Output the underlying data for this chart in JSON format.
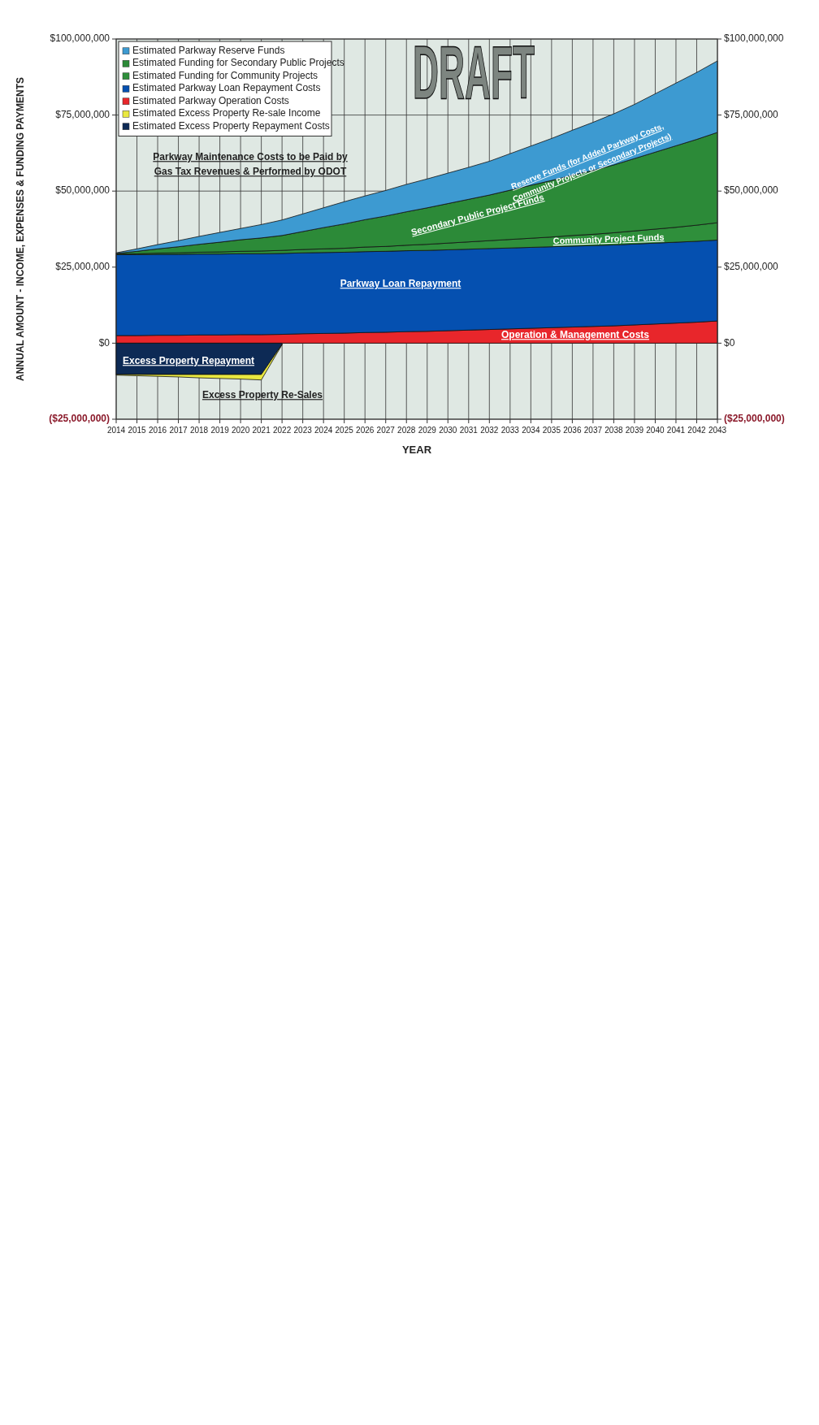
{
  "chart_data": [
    {
      "type": "area",
      "stacked": true,
      "xlabel": "YEAR",
      "ylabel": "ANNUAL AMOUNT - INCOME, EXPENSES & FUNDING PAYMENTS",
      "x": [
        2014,
        2015,
        2016,
        2017,
        2018,
        2019,
        2020,
        2021,
        2022,
        2023,
        2024,
        2025,
        2026,
        2027,
        2028,
        2029,
        2030,
        2031,
        2032,
        2033,
        2034,
        2035,
        2036,
        2037,
        2038,
        2039,
        2040,
        2041,
        2042,
        2043
      ],
      "series": [
        {
          "name": "Estimated Parkway Operation Costs",
          "color": "#e8262b",
          "values": [
            2500000,
            2500000,
            2600000,
            2600000,
            2700000,
            2700000,
            2800000,
            2800000,
            2900000,
            3100000,
            3200000,
            3300000,
            3500000,
            3600000,
            3800000,
            3900000,
            4100000,
            4300000,
            4500000,
            4700000,
            4900000,
            5100000,
            5300000,
            5500000,
            5700000,
            6000000,
            6300000,
            6600000,
            6900000,
            7300000
          ]
        },
        {
          "name": "Estimated Parkway Loan Repayment Costs",
          "color": "#0550b0",
          "values": [
            26600000,
            26600000,
            26600000,
            26600000,
            26600000,
            26600000,
            26600000,
            26600000,
            26600000,
            26600000,
            26600000,
            26600000,
            26600000,
            26600000,
            26600000,
            26600000,
            26600000,
            26600000,
            26600000,
            26600000,
            26600000,
            26600000,
            26600000,
            26600000,
            26600000,
            26600000,
            26600000,
            26600000,
            26600000,
            26600000
          ]
        },
        {
          "name": "Estimated Funding for Community Projects",
          "color": "#2f8f3b",
          "values": [
            200000,
            300000,
            400000,
            500000,
            600000,
            700000,
            800000,
            900000,
            1000000,
            1100000,
            1200000,
            1300000,
            1500000,
            1600000,
            1800000,
            2000000,
            2200000,
            2400000,
            2600000,
            2800000,
            3000000,
            3200000,
            3500000,
            3700000,
            4000000,
            4300000,
            4600000,
            4900000,
            5300000,
            5700000
          ]
        },
        {
          "name": "Estimated Funding for Secondary Public Projects",
          "color": "#2c8a38",
          "values": [
            200000,
            800000,
            1400000,
            2000000,
            2600000,
            3200000,
            3800000,
            4300000,
            4900000,
            5900000,
            7000000,
            8000000,
            9000000,
            10000000,
            11000000,
            12000000,
            13000000,
            14000000,
            15000000,
            16200000,
            17400000,
            18600000,
            19800000,
            21000000,
            22300000,
            23800000,
            25300000,
            26800000,
            28200000,
            29700000
          ]
        },
        {
          "name": "Estimated Parkway Reserve Funds",
          "color": "#3d9ad1",
          "values": [
            200000,
            800000,
            1400000,
            2000000,
            2600000,
            3200000,
            3700000,
            4400000,
            5100000,
            5800000,
            6500000,
            7300000,
            7800000,
            8400000,
            9000000,
            9500000,
            10000000,
            10500000,
            11100000,
            12000000,
            12900000,
            13800000,
            14800000,
            15800000,
            16800000,
            17800000,
            19200000,
            20600000,
            22000000,
            23500000
          ]
        }
      ],
      "xlim": [
        2014,
        2043
      ],
      "xticks": [
        2014,
        2015,
        2016,
        2017,
        2018,
        2019,
        2020,
        2021,
        2022,
        2023,
        2024,
        2025,
        2026,
        2027,
        2028,
        2029,
        2030,
        2031,
        2032,
        2033,
        2034,
        2035,
        2036,
        2037,
        2038,
        2039,
        2040,
        2041,
        2042,
        2043
      ],
      "ylim": [
        -25000000,
        100000000
      ],
      "yticks": [
        {
          "value": -25000000,
          "label": "($25,000,000)"
        },
        {
          "value": 0,
          "label": "$0"
        },
        {
          "value": 25000000,
          "label": "$25,000,000"
        },
        {
          "value": 50000000,
          "label": "$50,000,000"
        },
        {
          "value": 75000000,
          "label": "$75,000,000"
        },
        {
          "value": 100000000,
          "label": "$100,000,000"
        }
      ],
      "y2lim": [
        -25000000,
        100000000
      ],
      "y2ticks": [
        {
          "value": -25000000,
          "label": "($25,000,000)"
        },
        {
          "value": 0,
          "label": "$0"
        },
        {
          "value": 25000000,
          "label": "$25,000,000"
        },
        {
          "value": 50000000,
          "label": "$50,000,000"
        },
        {
          "value": 75000000,
          "label": "$75,000,000"
        },
        {
          "value": 100000000,
          "label": "$100,000,000"
        }
      ],
      "grid": true,
      "legend": "top left",
      "annotations": [
        "Parkway Maintenance Costs to be Paid by Gas Tax Revenues & Performed by ODOT",
        "Reserve Funds (for Added Parkway Costs, Community Projects or Secondary Projects)",
        "Secondary Public Project Funds",
        "Community Project Funds",
        "Parkway Loan Repayment",
        "Operation & Management Costs",
        "DRAFT"
      ]
    },
    {
      "type": "area",
      "stacked": true,
      "x": [
        2014,
        2015,
        2016,
        2017,
        2018,
        2019,
        2020,
        2021,
        2022
      ],
      "series": [
        {
          "name": "Estimated Excess Property Repayment Costs",
          "color": "#0d2a55",
          "values": [
            -10300000,
            -10300000,
            -10300000,
            -10300000,
            -10300000,
            -10300000,
            -10300000,
            -10300000,
            -400000
          ]
        },
        {
          "name": "Estimated Excess Property Re-sale Income",
          "color": "#e9e840",
          "values": [
            -200000,
            -400000,
            -600000,
            -800000,
            -1100000,
            -1300000,
            -1500000,
            -1800000,
            -100000
          ]
        }
      ],
      "xlim": [
        2014,
        2043
      ],
      "ylim": [
        -25000000,
        100000000
      ],
      "legend": "top left",
      "annotations": [
        "Excess Property Repayment",
        "Excess Property Re-Sales"
      ]
    }
  ]
}
